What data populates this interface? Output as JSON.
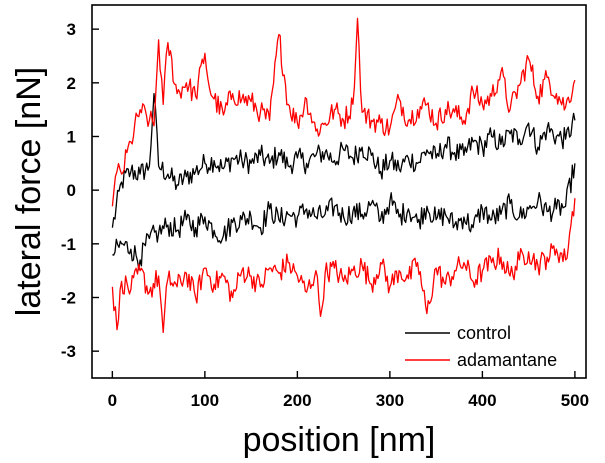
{
  "chart_data": {
    "type": "line",
    "title": "",
    "xlabel": "position [nm]",
    "ylabel": "lateral force [nN]",
    "xlim": [
      -22,
      512
    ],
    "ylim": [
      -3.5,
      3.45
    ],
    "xticks": [
      0,
      100,
      200,
      300,
      400,
      500
    ],
    "yticks": [
      -3,
      -2,
      -1,
      0,
      1,
      2,
      3
    ],
    "legend_position": "bottom-right",
    "series": [
      {
        "name": "control trace",
        "legend": "control",
        "color": "#000000",
        "x": [
          0,
          10,
          20,
          30,
          40,
          45,
          50,
          60,
          70,
          80,
          90,
          100,
          110,
          120,
          130,
          140,
          150,
          160,
          170,
          180,
          190,
          200,
          210,
          220,
          230,
          240,
          250,
          260,
          270,
          280,
          290,
          300,
          310,
          320,
          330,
          340,
          350,
          360,
          370,
          380,
          390,
          400,
          410,
          420,
          430,
          440,
          450,
          460,
          470,
          480,
          490,
          500
        ],
        "values": [
          -0.7,
          0.15,
          0.35,
          0.3,
          0.45,
          1.8,
          0.45,
          0.3,
          0.1,
          0.25,
          0.35,
          0.5,
          0.55,
          0.4,
          0.6,
          0.55,
          0.5,
          0.65,
          0.5,
          0.7,
          0.45,
          0.6,
          0.5,
          0.65,
          0.7,
          0.55,
          0.75,
          0.6,
          0.8,
          0.65,
          0.35,
          0.55,
          0.4,
          0.6,
          0.5,
          0.75,
          0.6,
          0.85,
          0.7,
          0.65,
          0.9,
          0.8,
          1.0,
          0.85,
          1.05,
          0.95,
          1.25,
          0.8,
          1.15,
          1.0,
          0.95,
          1.3
        ]
      },
      {
        "name": "control retrace",
        "legend": "",
        "color": "#000000",
        "x": [
          0,
          10,
          20,
          30,
          40,
          50,
          60,
          70,
          80,
          90,
          100,
          110,
          120,
          130,
          140,
          150,
          160,
          170,
          180,
          190,
          200,
          210,
          220,
          230,
          240,
          250,
          260,
          270,
          280,
          290,
          300,
          310,
          320,
          330,
          340,
          350,
          360,
          370,
          380,
          390,
          400,
          410,
          420,
          430,
          440,
          450,
          460,
          470,
          480,
          490,
          500
        ],
        "values": [
          -1.2,
          -1.0,
          -1.1,
          -1.3,
          -0.9,
          -0.8,
          -0.65,
          -0.75,
          -0.55,
          -0.7,
          -0.5,
          -0.75,
          -0.85,
          -0.6,
          -0.55,
          -0.5,
          -0.7,
          -0.35,
          -0.55,
          -0.45,
          -0.5,
          -0.35,
          -0.5,
          -0.45,
          -0.3,
          -0.5,
          -0.4,
          -0.45,
          -0.25,
          -0.55,
          -0.2,
          -0.5,
          -0.35,
          -0.6,
          -0.3,
          -0.55,
          -0.45,
          -0.65,
          -0.5,
          -0.7,
          -0.35,
          -0.55,
          -0.45,
          -0.25,
          -0.5,
          -0.35,
          -0.2,
          -0.4,
          -0.35,
          -0.3,
          0.5
        ]
      },
      {
        "name": "adamantane trace",
        "legend": "adamantane",
        "color": "#ff0000",
        "x": [
          0,
          5,
          10,
          20,
          30,
          40,
          45,
          50,
          55,
          60,
          70,
          80,
          90,
          100,
          105,
          110,
          120,
          130,
          140,
          150,
          160,
          170,
          180,
          190,
          200,
          210,
          220,
          230,
          240,
          250,
          260,
          265,
          270,
          280,
          290,
          300,
          310,
          320,
          330,
          340,
          350,
          360,
          370,
          380,
          390,
          400,
          410,
          420,
          430,
          440,
          450,
          460,
          470,
          480,
          490,
          500
        ],
        "values": [
          -0.3,
          0.35,
          0.3,
          0.9,
          1.5,
          1.3,
          1.2,
          2.8,
          1.6,
          2.75,
          1.8,
          2.0,
          1.75,
          2.55,
          1.9,
          1.7,
          1.4,
          1.8,
          1.7,
          1.65,
          1.45,
          1.3,
          2.9,
          1.6,
          1.25,
          1.7,
          1.1,
          1.25,
          1.5,
          1.3,
          1.6,
          3.2,
          1.45,
          1.3,
          1.25,
          1.15,
          1.7,
          1.3,
          1.5,
          1.6,
          1.25,
          1.5,
          1.45,
          1.3,
          1.85,
          1.6,
          1.75,
          2.2,
          1.5,
          1.95,
          2.45,
          1.75,
          2.1,
          1.8,
          1.55,
          2.05
        ]
      },
      {
        "name": "adamantane retrace",
        "legend": "",
        "color": "#ff0000",
        "x": [
          0,
          5,
          10,
          20,
          30,
          40,
          50,
          55,
          60,
          70,
          80,
          90,
          100,
          110,
          120,
          130,
          140,
          150,
          160,
          170,
          180,
          190,
          200,
          210,
          220,
          225,
          230,
          240,
          250,
          260,
          270,
          280,
          290,
          300,
          310,
          320,
          330,
          340,
          350,
          360,
          370,
          380,
          390,
          400,
          410,
          420,
          430,
          440,
          450,
          460,
          470,
          480,
          490,
          500
        ],
        "values": [
          -1.8,
          -2.6,
          -1.7,
          -1.85,
          -1.5,
          -1.9,
          -1.6,
          -2.65,
          -1.65,
          -1.8,
          -1.55,
          -2.0,
          -1.45,
          -1.75,
          -1.6,
          -2.0,
          -1.5,
          -1.6,
          -1.8,
          -1.45,
          -1.55,
          -1.35,
          -1.6,
          -1.9,
          -1.5,
          -2.35,
          -1.55,
          -1.45,
          -1.7,
          -1.5,
          -1.4,
          -1.75,
          -1.35,
          -1.8,
          -1.5,
          -1.65,
          -1.35,
          -2.3,
          -1.45,
          -1.75,
          -1.5,
          -1.35,
          -1.7,
          -1.5,
          -1.35,
          -1.25,
          -1.6,
          -1.3,
          -1.15,
          -1.4,
          -1.25,
          -1.1,
          -1.3,
          -0.15
        ]
      }
    ]
  }
}
